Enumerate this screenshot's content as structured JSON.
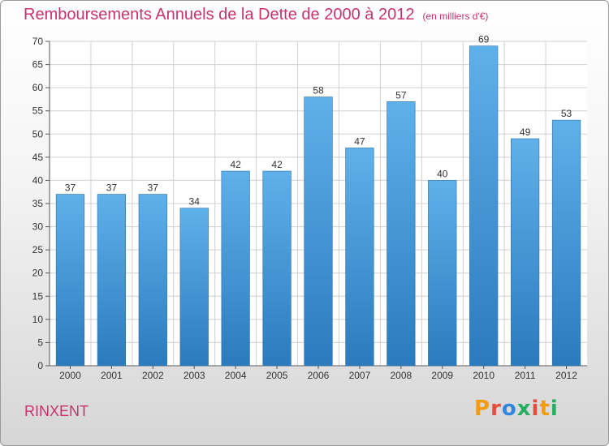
{
  "header": {
    "title": "Remboursements Annuels de la Dette de 2000 à 2012",
    "subtitle": "(en milliers d'€)"
  },
  "footer": {
    "town": "RINXENT",
    "brand": "Proxiti"
  },
  "colors": {
    "title": "#c8336e",
    "bar_top": "#5eb1ea",
    "bar_bottom": "#2a7bbd",
    "brand_letters": [
      "#f39c12",
      "#e74c3c",
      "#2e86de",
      "#27ae60",
      "#e74c3c",
      "#f39c12",
      "#27ae60"
    ]
  },
  "chart_data": {
    "type": "bar",
    "title": "Remboursements Annuels de la Dette de 2000 à 2012",
    "categories": [
      "2000",
      "2001",
      "2002",
      "2003",
      "2004",
      "2005",
      "2006",
      "2007",
      "2008",
      "2009",
      "2010",
      "2011",
      "2012"
    ],
    "values": [
      37,
      37,
      37,
      34,
      42,
      42,
      58,
      47,
      57,
      40,
      69,
      49,
      53
    ],
    "ylim": [
      0,
      70
    ],
    "yticks": [
      0,
      5,
      10,
      15,
      20,
      25,
      30,
      35,
      40,
      45,
      50,
      55,
      60,
      65,
      70
    ],
    "grid": true,
    "xlabel": "",
    "ylabel": ""
  }
}
